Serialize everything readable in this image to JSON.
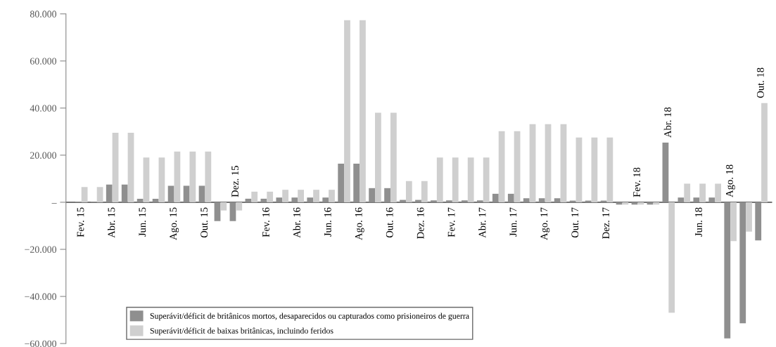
{
  "chart_data": {
    "type": "bar",
    "categories": [
      "Fev. 15",
      null,
      "Abr. 15",
      null,
      "Jun. 15",
      null,
      "Ago. 15",
      null,
      "Out. 15",
      null,
      "Dez. 15",
      null,
      "Fev. 16",
      null,
      "Abr. 16",
      null,
      "Jun. 16",
      null,
      "Ago. 16",
      null,
      "Out. 16",
      null,
      "Dez. 16",
      null,
      "Fev. 17",
      null,
      "Abr. 17",
      null,
      "Jun. 17",
      null,
      "Ago. 17",
      null,
      "Out. 17",
      null,
      "Dez. 17",
      null,
      "Fev. 18",
      null,
      "Abr. 18",
      null,
      "Jun. 18",
      null,
      "Ago. 18",
      null,
      "Out. 18"
    ],
    "series": [
      {
        "name": "Superávit/déficit de britânicos mortos, desaparecidos ou capturados como prisioneiros de guerra",
        "color": "#8f8f8f",
        "values": [
          300,
          300,
          7500,
          7500,
          1500,
          1500,
          7000,
          7000,
          7000,
          -8000,
          -8000,
          1500,
          1500,
          2000,
          2000,
          2000,
          2000,
          16400,
          16400,
          6000,
          6000,
          1000,
          1000,
          800,
          800,
          800,
          800,
          3600,
          3600,
          1700,
          1700,
          1700,
          700,
          700,
          700,
          -1000,
          -1000,
          -1000,
          25300,
          2000,
          2000,
          2000,
          -57800,
          -51400,
          -16200
        ]
      },
      {
        "name": "Superávit/déficit de baixas britânicas, incluindo feridos",
        "color": "#cfcfcf",
        "values": [
          6500,
          6500,
          29500,
          29500,
          19000,
          19000,
          21500,
          21500,
          21500,
          -3500,
          -3500,
          4500,
          4500,
          5300,
          5300,
          5300,
          5300,
          77300,
          77300,
          38000,
          38000,
          9000,
          9000,
          19000,
          19000,
          19000,
          19000,
          30200,
          30200,
          33200,
          33200,
          33200,
          27500,
          27500,
          27500,
          -1000,
          -1000,
          -1000,
          -46900,
          7900,
          7900,
          7900,
          -16500,
          -12500,
          42100
        ]
      }
    ],
    "ylim": [
      -60000,
      80000
    ],
    "yticks": [
      {
        "value": -60000,
        "label": "−60.000"
      },
      {
        "value": -40000,
        "label": "−40.000"
      },
      {
        "value": -20000,
        "label": "−20.000"
      },
      {
        "value": 0,
        "label": "–"
      },
      {
        "value": 20000,
        "label": "20.000"
      },
      {
        "value": 40000,
        "label": "40.000"
      },
      {
        "value": 60000,
        "label": "60.000"
      },
      {
        "value": 80000,
        "label": "80.000"
      }
    ],
    "legend": "bottom left",
    "grid": false
  }
}
